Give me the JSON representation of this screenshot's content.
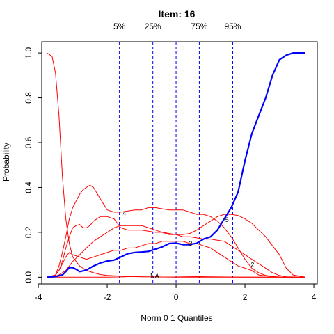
{
  "chart_data": {
    "type": "line",
    "title": "Item:  16",
    "xlabel": "Norm 0 1 Quantiles",
    "ylabel": "Probability",
    "xlim": [
      -4,
      4
    ],
    "ylim": [
      0,
      1
    ],
    "x_ticks": [
      -4,
      -2,
      0,
      2,
      4
    ],
    "x_tick_labels": [
      "-4",
      "-2",
      "0",
      "2",
      "4"
    ],
    "y_ticks": [
      0,
      0.2,
      0.4,
      0.6,
      0.8,
      1
    ],
    "y_tick_labels": [
      "0.0",
      "0.2",
      "0.4",
      "0.6",
      "0.8",
      "1.0"
    ],
    "quantiles": [
      {
        "label": "5%",
        "x": -1.645
      },
      {
        "label": "25%",
        "x": -0.674
      },
      {
        "label": "",
        "x": 0
      },
      {
        "label": "75%",
        "x": 0.674
      },
      {
        "label": "95%",
        "x": 1.645
      }
    ],
    "colors": {
      "options": "#ff0000",
      "key": "#0000ff",
      "quantile": "#0000ff"
    },
    "series": [
      {
        "label": "NA",
        "label_at": [
          -0.62,
          0.005
        ],
        "color": "#ff0000",
        "x": [
          -3.75,
          -3.5,
          -3.2,
          -3.0,
          -2.5,
          -2.0,
          -1.5,
          -1.0,
          -0.5,
          0.0,
          0.5,
          1.0,
          1.5,
          2.0,
          3.0,
          3.75
        ],
        "y": [
          0,
          0,
          0,
          0,
          0,
          0,
          0.002,
          0.005,
          0.006,
          0.005,
          0.003,
          0.002,
          0.001,
          0,
          0,
          0
        ]
      },
      {
        "label": "",
        "label_at": null,
        "color": "#ff0000",
        "x": [
          -3.75,
          -3.6,
          -3.5,
          -3.4,
          -3.3,
          -3.2,
          -3.1,
          -3.0,
          -2.8,
          -2.6,
          -2.4,
          -2.2,
          -2.0,
          -1.5,
          -1.0,
          -0.5,
          0.0,
          0.5,
          1.0,
          2.0,
          3.0,
          3.75
        ],
        "y": [
          1.0,
          0.985,
          0.91,
          0.72,
          0.45,
          0.26,
          0.15,
          0.09,
          0.05,
          0.03,
          0.02,
          0.012,
          0.008,
          0.004,
          0.002,
          0.001,
          0,
          0,
          0,
          0,
          0,
          0
        ]
      },
      {
        "label": "2",
        "label_at": [
          2.22,
          0.055
        ],
        "color": "#ff0000",
        "x": [
          -3.75,
          -3.5,
          -3.4,
          -3.3,
          -3.2,
          -3.1,
          -3.0,
          -2.8,
          -2.6,
          -2.4,
          -2.2,
          -2.0,
          -1.8,
          -1.6,
          -1.4,
          -1.2,
          -1.0,
          -0.8,
          -0.6,
          -0.4,
          -0.2,
          0.0,
          0.2,
          0.4,
          0.6,
          0.8,
          1.0,
          1.2,
          1.4,
          1.6,
          1.8,
          2.0,
          2.2,
          2.4,
          2.6,
          2.8,
          3.0,
          3.2,
          3.4,
          3.75
        ],
        "y": [
          0,
          0.01,
          0.03,
          0.06,
          0.09,
          0.11,
          0.1,
          0.09,
          0.08,
          0.09,
          0.1,
          0.11,
          0.12,
          0.12,
          0.13,
          0.13,
          0.14,
          0.15,
          0.15,
          0.16,
          0.16,
          0.16,
          0.16,
          0.15,
          0.15,
          0.14,
          0.13,
          0.11,
          0.09,
          0.07,
          0.05,
          0.04,
          0.03,
          0.01,
          0.006,
          0.002,
          0.001,
          0,
          0,
          0
        ]
      },
      {
        "label": "3",
        "label_at": [
          0.42,
          0.15
        ],
        "color": "#ff0000",
        "x": [
          -3.75,
          -3.5,
          -3.4,
          -3.3,
          -3.2,
          -3.1,
          -3.0,
          -2.9,
          -2.8,
          -2.7,
          -2.6,
          -2.5,
          -2.4,
          -2.2,
          -2.0,
          -1.8,
          -1.6,
          -1.4,
          -1.2,
          -1.0,
          -0.8,
          -0.6,
          -0.4,
          -0.2,
          0.0,
          0.2,
          0.4,
          0.6,
          0.8,
          1.0,
          1.2,
          1.4,
          1.6,
          1.8,
          2.0,
          2.2,
          2.4,
          2.6,
          2.8,
          3.0,
          3.2,
          3.75
        ],
        "y": [
          0,
          0.01,
          0.03,
          0.07,
          0.13,
          0.18,
          0.22,
          0.23,
          0.235,
          0.22,
          0.22,
          0.23,
          0.25,
          0.27,
          0.27,
          0.26,
          0.22,
          0.21,
          0.21,
          0.21,
          0.205,
          0.2,
          0.2,
          0.195,
          0.19,
          0.18,
          0.18,
          0.175,
          0.17,
          0.17,
          0.165,
          0.16,
          0.14,
          0.12,
          0.1,
          0.08,
          0.06,
          0.04,
          0.02,
          0.008,
          0.002,
          0
        ]
      },
      {
        "label": "4",
        "label_at": [
          -1.5,
          0.285
        ],
        "color": "#ff0000",
        "x": [
          -3.75,
          -3.5,
          -3.4,
          -3.3,
          -3.2,
          -3.1,
          -3.0,
          -2.9,
          -2.8,
          -2.7,
          -2.6,
          -2.5,
          -2.4,
          -2.2,
          -2.0,
          -1.8,
          -1.6,
          -1.4,
          -1.2,
          -1.0,
          -0.8,
          -0.6,
          -0.4,
          -0.2,
          0.0,
          0.2,
          0.4,
          0.6,
          0.8,
          1.0,
          1.2,
          1.4,
          1.6,
          1.8,
          2.0,
          2.2,
          2.4,
          2.6,
          2.8,
          3.0,
          3.2,
          3.75
        ],
        "y": [
          0,
          0.01,
          0.05,
          0.11,
          0.18,
          0.26,
          0.31,
          0.34,
          0.37,
          0.39,
          0.4,
          0.41,
          0.4,
          0.35,
          0.3,
          0.29,
          0.29,
          0.295,
          0.3,
          0.3,
          0.31,
          0.31,
          0.305,
          0.3,
          0.3,
          0.3,
          0.29,
          0.28,
          0.28,
          0.27,
          0.25,
          0.22,
          0.18,
          0.13,
          0.08,
          0.04,
          0.02,
          0.008,
          0.003,
          0.001,
          0,
          0
        ]
      },
      {
        "label": "5",
        "label_at": [
          1.48,
          0.255
        ],
        "color": "#ff0000",
        "x": [
          -3.75,
          -3.5,
          -3.4,
          -3.2,
          -3.0,
          -2.8,
          -2.6,
          -2.4,
          -2.2,
          -2.0,
          -1.8,
          -1.6,
          -1.4,
          -1.2,
          -1.0,
          -0.8,
          -0.6,
          -0.4,
          -0.2,
          0.0,
          0.2,
          0.4,
          0.6,
          0.8,
          1.0,
          1.2,
          1.4,
          1.6,
          1.8,
          2.0,
          2.2,
          2.4,
          2.6,
          2.8,
          3.0,
          3.2,
          3.4,
          3.75
        ],
        "y": [
          0,
          0.005,
          0.01,
          0.03,
          0.07,
          0.1,
          0.13,
          0.16,
          0.18,
          0.2,
          0.22,
          0.23,
          0.23,
          0.23,
          0.23,
          0.22,
          0.21,
          0.2,
          0.19,
          0.19,
          0.19,
          0.195,
          0.21,
          0.23,
          0.25,
          0.27,
          0.28,
          0.28,
          0.275,
          0.26,
          0.24,
          0.21,
          0.18,
          0.14,
          0.1,
          0.04,
          0.01,
          0
        ]
      }
    ],
    "key_curve": {
      "color": "#0000ff",
      "x": [
        -3.75,
        -3.5,
        -3.3,
        -3.2,
        -3.1,
        -3.0,
        -2.9,
        -2.8,
        -2.7,
        -2.6,
        -2.4,
        -2.2,
        -2.0,
        -1.8,
        -1.6,
        -1.4,
        -1.2,
        -1.0,
        -0.8,
        -0.6,
        -0.4,
        -0.2,
        0.0,
        0.2,
        0.4,
        0.6,
        0.8,
        1.0,
        1.2,
        1.4,
        1.6,
        1.8,
        2.0,
        2.2,
        2.4,
        2.6,
        2.8,
        3.0,
        3.2,
        3.4,
        3.6,
        3.75
      ],
      "y": [
        0,
        0.003,
        0.01,
        0.025,
        0.043,
        0.043,
        0.035,
        0.025,
        0.028,
        0.032,
        0.05,
        0.063,
        0.072,
        0.076,
        0.09,
        0.105,
        0.11,
        0.112,
        0.115,
        0.125,
        0.135,
        0.15,
        0.152,
        0.145,
        0.145,
        0.152,
        0.17,
        0.18,
        0.21,
        0.26,
        0.31,
        0.38,
        0.52,
        0.64,
        0.72,
        0.8,
        0.9,
        0.97,
        0.99,
        1.0,
        1.0,
        1.0
      ]
    }
  }
}
